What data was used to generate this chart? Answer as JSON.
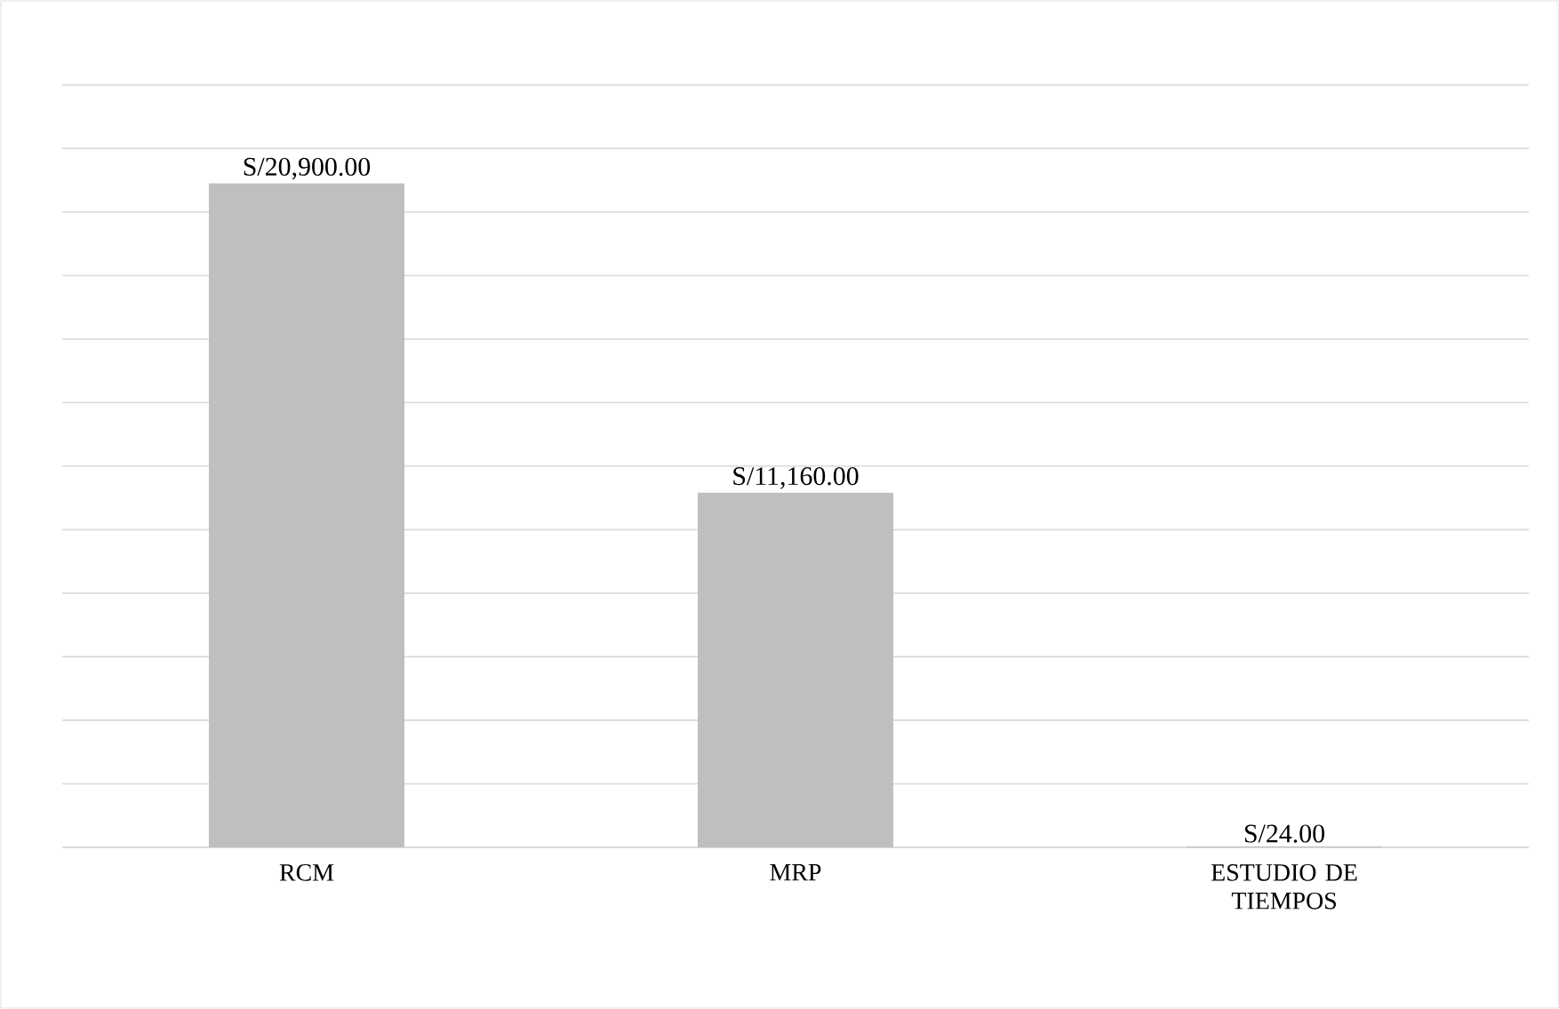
{
  "chart_data": {
    "type": "bar",
    "categories": [
      "RCM",
      "MRP",
      "ESTUDIO DE TIEMPOS"
    ],
    "values": [
      20900,
      11160,
      24
    ],
    "value_labels": [
      "S/20,900.00",
      "S/11,160.00",
      "S/24.00"
    ],
    "color": "#bfbfbf",
    "grid": "y",
    "tick_labels": "x"
  }
}
